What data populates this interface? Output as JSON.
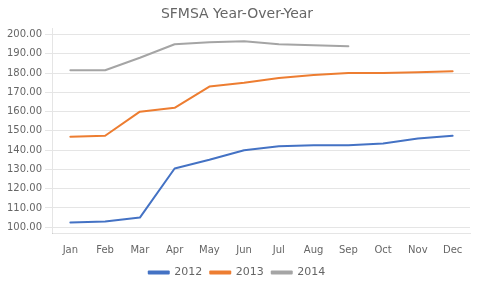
{
  "chart_data": {
    "type": "line",
    "title": "SFMSA Year-Over-Year",
    "categories": [
      "Jan",
      "Feb",
      "Mar",
      "Apr",
      "May",
      "Jun",
      "Jul",
      "Aug",
      "Sep",
      "Oct",
      "Nov",
      "Dec"
    ],
    "series": [
      {
        "name": "2012",
        "color": "#4472C4",
        "values": [
          102.5,
          103.0,
          105.0,
          130.5,
          135.0,
          140.0,
          142.0,
          142.5,
          142.5,
          143.5,
          146.0,
          147.5
        ]
      },
      {
        "name": "2013",
        "color": "#ED7D31",
        "values": [
          147.0,
          147.5,
          160.0,
          162.0,
          173.0,
          175.0,
          177.5,
          179.0,
          180.0,
          180.0,
          180.5,
          181.0
        ]
      },
      {
        "name": "2014",
        "color": "#A5A5A5",
        "values": [
          181.5,
          181.5,
          188.0,
          195.0,
          196.0,
          196.5,
          195.0,
          194.5,
          194.0,
          null,
          null,
          null
        ]
      }
    ],
    "ylim": [
      97.0,
      203.0
    ],
    "yticks": [
      {
        "value": 100.0,
        "label": "100.00"
      },
      {
        "value": 110.0,
        "label": "110.00"
      },
      {
        "value": 120.0,
        "label": "120.00"
      },
      {
        "value": 130.0,
        "label": "130.00"
      },
      {
        "value": 140.0,
        "label": "140.00"
      },
      {
        "value": 150.0,
        "label": "150.00"
      },
      {
        "value": 160.0,
        "label": "160.00"
      },
      {
        "value": 170.0,
        "label": "170.00"
      },
      {
        "value": 180.0,
        "label": "180.00"
      },
      {
        "value": 190.0,
        "label": "190.00"
      },
      {
        "value": 200.0,
        "label": "200.00"
      }
    ],
    "grid": true,
    "legend": "bottom"
  }
}
